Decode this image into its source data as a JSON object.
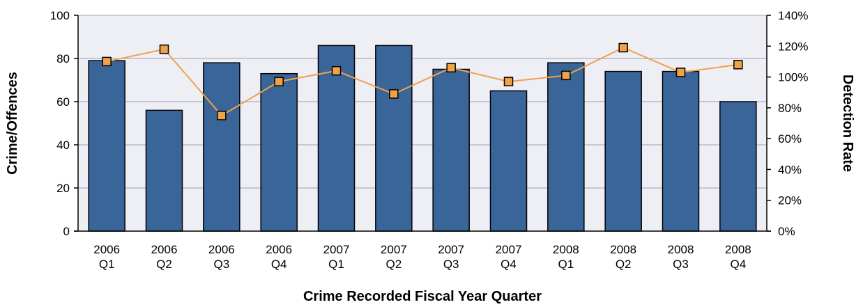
{
  "chart_data": {
    "type": "bar",
    "xlabel": "Crime Recorded Fiscal Year Quarter",
    "ylabel": "Crime/Offences",
    "y2label": "Detection Rate",
    "categories": [
      [
        "2006",
        "Q1"
      ],
      [
        "2006",
        "Q2"
      ],
      [
        "2006",
        "Q3"
      ],
      [
        "2006",
        "Q4"
      ],
      [
        "2007",
        "Q1"
      ],
      [
        "2007",
        "Q2"
      ],
      [
        "2007",
        "Q3"
      ],
      [
        "2007",
        "Q4"
      ],
      [
        "2008",
        "Q1"
      ],
      [
        "2008",
        "Q2"
      ],
      [
        "2008",
        "Q3"
      ],
      [
        "2008",
        "Q4"
      ]
    ],
    "series": [
      {
        "type": "bar",
        "axis": "left",
        "color": "#3a6598",
        "values": [
          79,
          56,
          78,
          73,
          86,
          86,
          75,
          65,
          78,
          74,
          74,
          60
        ]
      },
      {
        "type": "line",
        "axis": "right",
        "color": "#f0a24a",
        "marker_color": "#f0a24a",
        "unit": "%",
        "values": [
          110,
          118,
          75,
          97,
          104,
          89,
          106,
          97,
          101,
          119,
          103,
          108
        ]
      }
    ],
    "ylim": [
      0,
      100
    ],
    "yticks": [
      0,
      20,
      40,
      60,
      80,
      100
    ],
    "y2lim": [
      0,
      140
    ],
    "y2ticks": [
      "0%",
      "20%",
      "40%",
      "60%",
      "80%",
      "100%",
      "120%",
      "140%"
    ],
    "grid": true,
    "plot_background": "#eeeef5"
  }
}
